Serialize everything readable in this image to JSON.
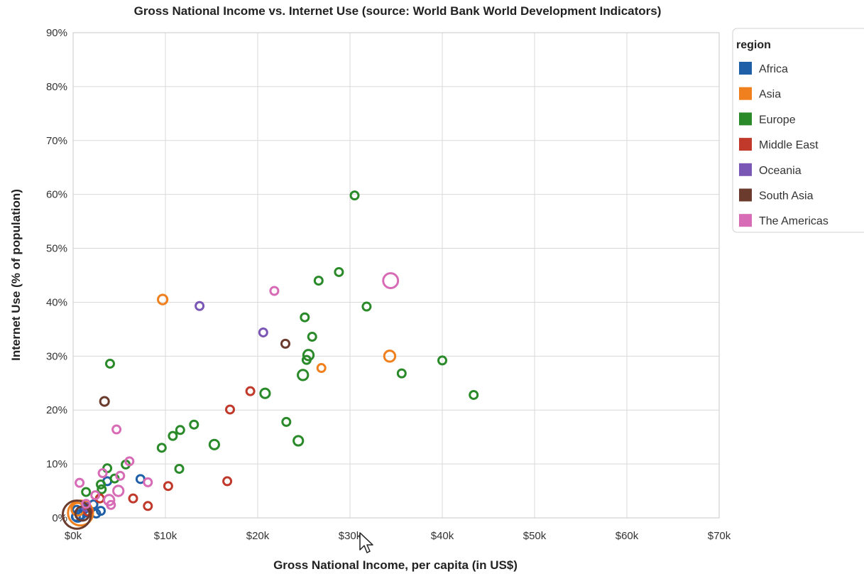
{
  "chart_data": {
    "type": "scatter",
    "title": "Gross National Income vs. Internet Use (source: World Bank World Development Indicators)",
    "xlabel": "Gross National Income, per capita (in US$)",
    "ylabel": "Internet Use (% of population)",
    "xlim": [
      0,
      70000
    ],
    "ylim": [
      0,
      90
    ],
    "x_ticks": [
      0,
      10000,
      20000,
      30000,
      40000,
      50000,
      60000,
      70000
    ],
    "x_tick_labels": [
      "$0k",
      "$10k",
      "$20k",
      "$30k",
      "$40k",
      "$50k",
      "$60k",
      "$70k"
    ],
    "y_ticks": [
      0,
      10,
      20,
      30,
      40,
      50,
      60,
      70,
      80,
      90
    ],
    "y_tick_labels": [
      "0%",
      "10%",
      "20%",
      "30%",
      "40%",
      "50%",
      "60%",
      "70%",
      "80%",
      "90%"
    ],
    "grid": true,
    "legend_title": "region",
    "legend_position": "right",
    "series": [
      {
        "name": "Africa",
        "color": "#1f5fa8",
        "points": [
          {
            "x": 7300,
            "y": 7.2,
            "s": 1
          },
          {
            "x": 3000,
            "y": 1.3,
            "s": 1
          },
          {
            "x": 2200,
            "y": 2.5,
            "s": 1
          },
          {
            "x": 1500,
            "y": 1.0,
            "s": 1
          },
          {
            "x": 800,
            "y": 0.6,
            "s": 1.2
          },
          {
            "x": 500,
            "y": 0.3,
            "s": 1.4
          },
          {
            "x": 300,
            "y": 0.2,
            "s": 1
          },
          {
            "x": 1200,
            "y": 1.6,
            "s": 1
          },
          {
            "x": 400,
            "y": 1.5,
            "s": 1
          },
          {
            "x": 2500,
            "y": 0.8,
            "s": 1
          },
          {
            "x": 3700,
            "y": 6.8,
            "s": 1
          }
        ]
      },
      {
        "name": "Asia",
        "color": "#f07f1e",
        "points": [
          {
            "x": 9700,
            "y": 40.5,
            "s": 1.2
          },
          {
            "x": 34300,
            "y": 30.0,
            "s": 1.4
          },
          {
            "x": 26900,
            "y": 27.8,
            "s": 1
          },
          {
            "x": 800,
            "y": 0.9,
            "s": 3.2
          },
          {
            "x": 500,
            "y": 1.6,
            "s": 1.6
          }
        ]
      },
      {
        "name": "Europe",
        "color": "#2a8a2a",
        "points": [
          {
            "x": 30500,
            "y": 59.8,
            "s": 1
          },
          {
            "x": 28800,
            "y": 45.6,
            "s": 1
          },
          {
            "x": 26600,
            "y": 44.0,
            "s": 1
          },
          {
            "x": 31800,
            "y": 39.2,
            "s": 1
          },
          {
            "x": 25100,
            "y": 37.2,
            "s": 1
          },
          {
            "x": 25900,
            "y": 33.6,
            "s": 1
          },
          {
            "x": 25500,
            "y": 30.2,
            "s": 1.3
          },
          {
            "x": 25300,
            "y": 29.3,
            "s": 1
          },
          {
            "x": 24900,
            "y": 26.5,
            "s": 1.3
          },
          {
            "x": 40000,
            "y": 29.2,
            "s": 1
          },
          {
            "x": 35600,
            "y": 26.8,
            "s": 1
          },
          {
            "x": 43400,
            "y": 22.8,
            "s": 1
          },
          {
            "x": 20800,
            "y": 23.1,
            "s": 1.2
          },
          {
            "x": 23100,
            "y": 17.8,
            "s": 1
          },
          {
            "x": 24400,
            "y": 14.3,
            "s": 1.2
          },
          {
            "x": 13100,
            "y": 17.3,
            "s": 1
          },
          {
            "x": 11600,
            "y": 16.3,
            "s": 1
          },
          {
            "x": 10800,
            "y": 15.2,
            "s": 1
          },
          {
            "x": 15300,
            "y": 13.6,
            "s": 1.2
          },
          {
            "x": 9600,
            "y": 13.0,
            "s": 1
          },
          {
            "x": 11500,
            "y": 9.1,
            "s": 1
          },
          {
            "x": 4000,
            "y": 28.6,
            "s": 1
          },
          {
            "x": 5700,
            "y": 9.9,
            "s": 1
          },
          {
            "x": 3700,
            "y": 9.2,
            "s": 1
          },
          {
            "x": 4500,
            "y": 7.3,
            "s": 1
          },
          {
            "x": 3000,
            "y": 6.2,
            "s": 1
          },
          {
            "x": 1400,
            "y": 4.8,
            "s": 1
          },
          {
            "x": 3100,
            "y": 5.3,
            "s": 1
          }
        ]
      },
      {
        "name": "Middle East",
        "color": "#c0392b",
        "points": [
          {
            "x": 19200,
            "y": 23.5,
            "s": 1
          },
          {
            "x": 17000,
            "y": 20.1,
            "s": 1
          },
          {
            "x": 16700,
            "y": 6.8,
            "s": 1
          },
          {
            "x": 10300,
            "y": 5.9,
            "s": 1
          },
          {
            "x": 8100,
            "y": 2.2,
            "s": 1
          },
          {
            "x": 6500,
            "y": 3.6,
            "s": 1
          },
          {
            "x": 2900,
            "y": 3.6,
            "s": 1
          },
          {
            "x": 1600,
            "y": 1.2,
            "s": 1
          }
        ]
      },
      {
        "name": "Oceania",
        "color": "#7b57b5",
        "points": [
          {
            "x": 13700,
            "y": 39.3,
            "s": 1
          },
          {
            "x": 20600,
            "y": 34.4,
            "s": 1
          },
          {
            "x": 1400,
            "y": 2.0,
            "s": 1
          }
        ]
      },
      {
        "name": "South Asia",
        "color": "#6b3b2e",
        "points": [
          {
            "x": 23000,
            "y": 32.3,
            "s": 1
          },
          {
            "x": 3400,
            "y": 21.6,
            "s": 1.1
          },
          {
            "x": 400,
            "y": 0.6,
            "s": 3.6
          },
          {
            "x": 1000,
            "y": 0.8,
            "s": 1.8
          }
        ]
      },
      {
        "name": "The Americas",
        "color": "#d86bb5",
        "points": [
          {
            "x": 34400,
            "y": 44.0,
            "s": 1.9
          },
          {
            "x": 21800,
            "y": 42.1,
            "s": 1
          },
          {
            "x": 4700,
            "y": 16.4,
            "s": 1
          },
          {
            "x": 6100,
            "y": 10.5,
            "s": 1
          },
          {
            "x": 5100,
            "y": 7.8,
            "s": 1
          },
          {
            "x": 8100,
            "y": 6.6,
            "s": 1
          },
          {
            "x": 4900,
            "y": 5.0,
            "s": 1.3
          },
          {
            "x": 3900,
            "y": 3.3,
            "s": 1.3
          },
          {
            "x": 4100,
            "y": 2.4,
            "s": 1
          },
          {
            "x": 3200,
            "y": 8.3,
            "s": 1
          },
          {
            "x": 1400,
            "y": 2.6,
            "s": 1
          },
          {
            "x": 700,
            "y": 6.5,
            "s": 1
          },
          {
            "x": 2400,
            "y": 4.2,
            "s": 1
          }
        ]
      }
    ]
  }
}
